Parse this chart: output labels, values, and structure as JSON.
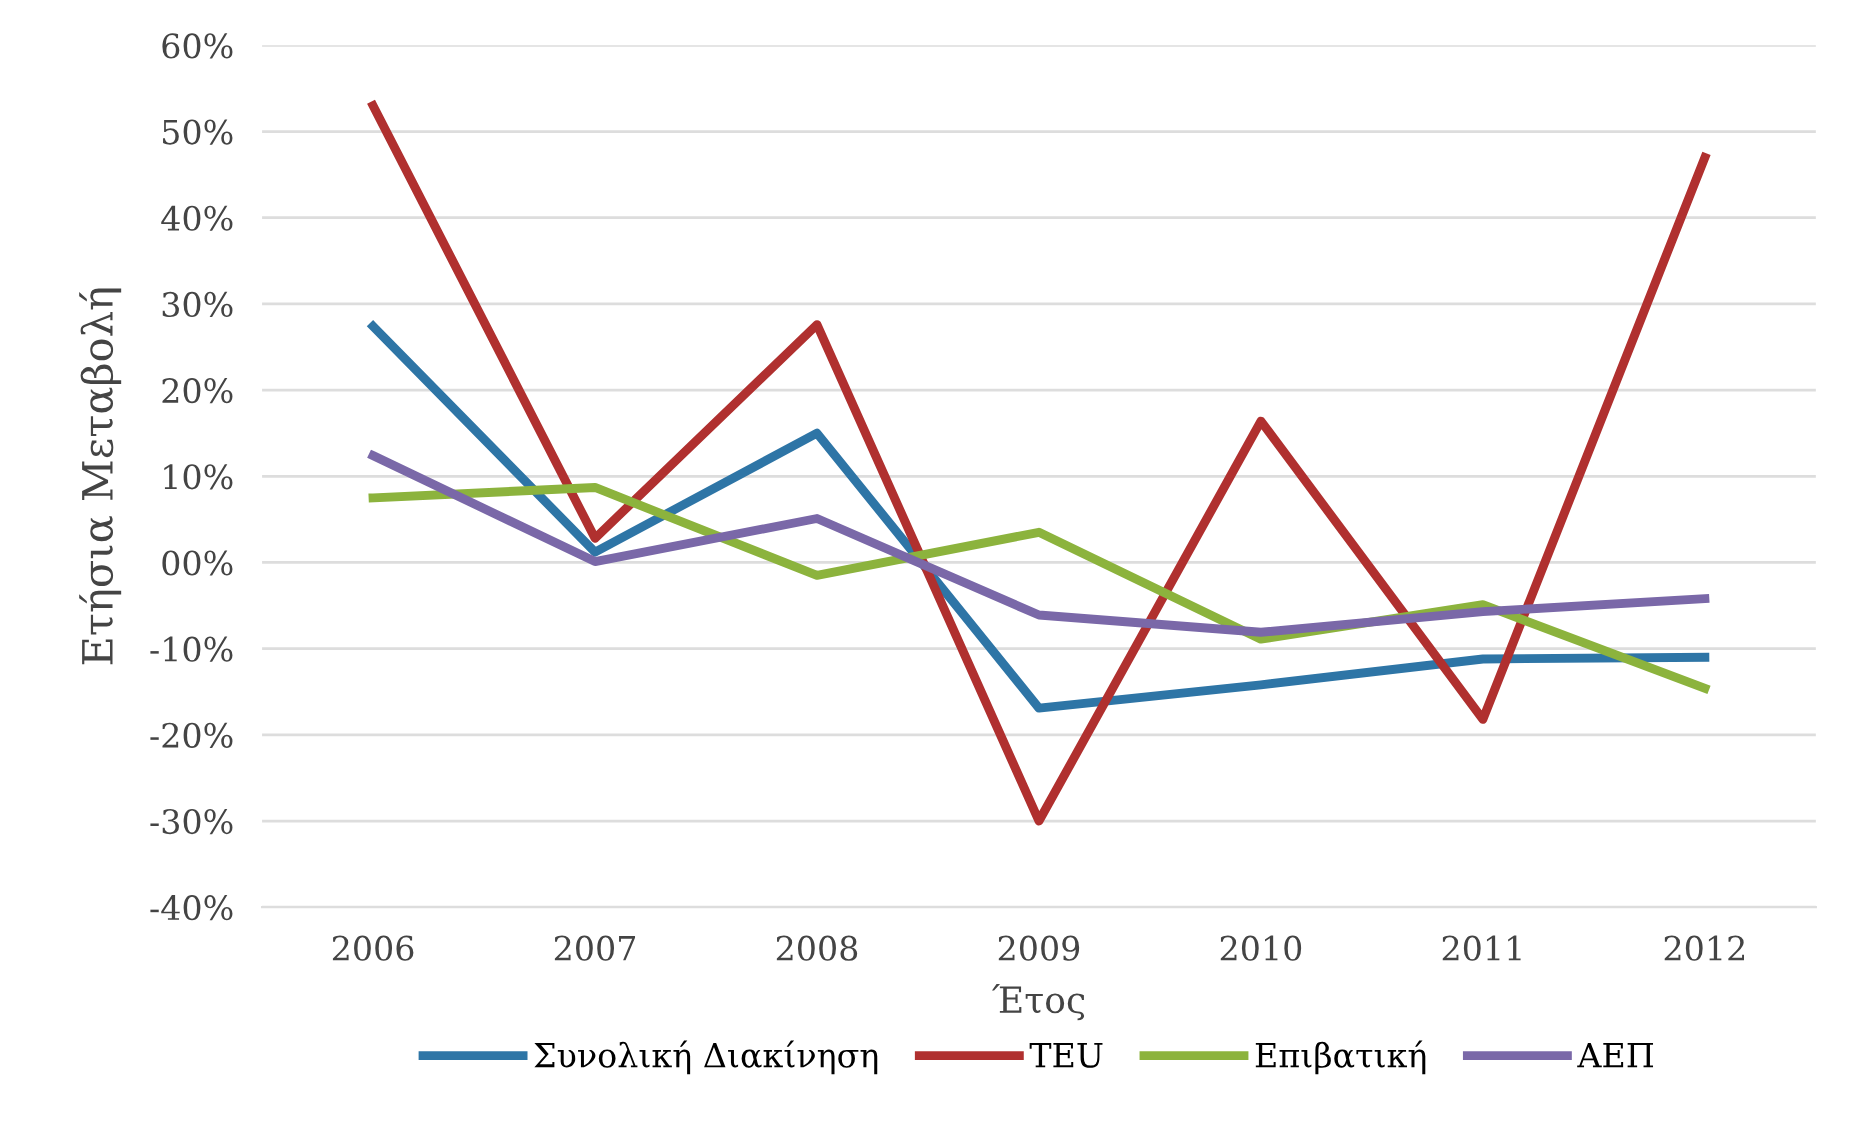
{
  "chart_data": {
    "type": "line",
    "xlabel": "Έτος",
    "ylabel": "Ετήσια Μεταβολή",
    "categories": [
      "2006",
      "2007",
      "2008",
      "2009",
      "2010",
      "2011",
      "2012"
    ],
    "series": [
      {
        "name": "Συνολική Διακίνηση",
        "color": "#2e75a6",
        "values": [
          27.4,
          1.2,
          15.0,
          -16.9,
          -14.2,
          -11.2,
          -11.0
        ]
      },
      {
        "name": "TEU",
        "color": "#b0302f",
        "values": [
          53.0,
          2.8,
          27.6,
          -30.0,
          16.4,
          -18.2,
          47.0
        ]
      },
      {
        "name": "Επιβατική",
        "color": "#8cb33d",
        "values": [
          7.5,
          8.7,
          -1.5,
          3.5,
          -8.9,
          -4.9,
          -14.6
        ]
      },
      {
        "name": "ΑΕΠ",
        "color": "#7a68a8",
        "values": [
          12.4,
          0.1,
          5.1,
          -6.1,
          -8.1,
          -5.7,
          -4.2
        ]
      }
    ],
    "ylim": [
      -40,
      60
    ],
    "yticks": [
      {
        "value": -40,
        "label": "-40%"
      },
      {
        "value": -30,
        "label": "-30%"
      },
      {
        "value": -20,
        "label": "-20%"
      },
      {
        "value": -10,
        "label": "-10%"
      },
      {
        "value": 0,
        "label": "00%"
      },
      {
        "value": 10,
        "label": "10%"
      },
      {
        "value": 20,
        "label": "20%"
      },
      {
        "value": 30,
        "label": "30%"
      },
      {
        "value": 40,
        "label": "40%"
      },
      {
        "value": 50,
        "label": "50%"
      },
      {
        "value": 60,
        "label": "60%"
      }
    ],
    "grid": "y",
    "legend": "bottom",
    "marker": "none",
    "line_style": "solid"
  }
}
